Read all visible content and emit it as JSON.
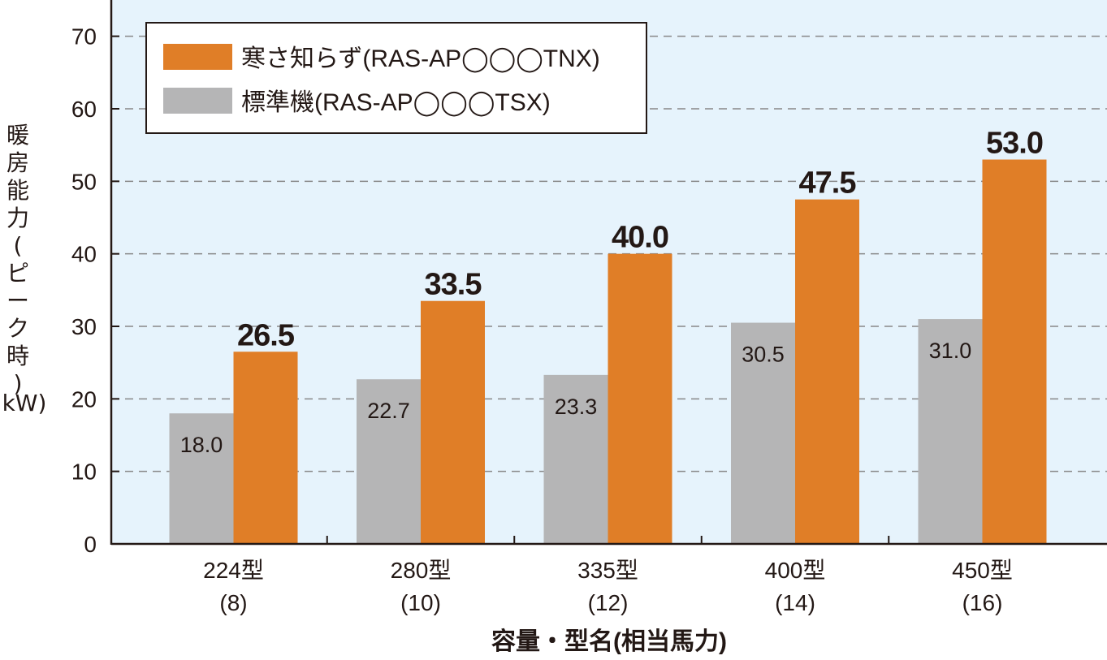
{
  "chart_data": {
    "type": "bar",
    "categories": [
      "224型",
      "280型",
      "335型",
      "400型",
      "450型"
    ],
    "category_sublabels": [
      "(8)",
      "(10)",
      "(12)",
      "(14)",
      "(16)"
    ],
    "series": [
      {
        "name": "標準機(RAS-AP◯◯◯TSX)",
        "values": [
          18.0,
          22.7,
          23.3,
          30.5,
          31.0
        ],
        "color": "#b5b5b6"
      },
      {
        "name": "寒さ知らず(RAS-AP◯◯◯TNX)",
        "values": [
          26.5,
          33.5,
          40.0,
          47.5,
          53.0
        ],
        "color": "#e07e27"
      }
    ],
    "data_labels": [
      [
        "18.0",
        "22.7",
        "23.3",
        "30.5",
        "31.0"
      ],
      [
        "26.5",
        "33.5",
        "40.0",
        "47.5",
        "53.0"
      ]
    ],
    "ylabel": "暖房能力(ピーク時)",
    "yunit": "kW)",
    "xlabel": "容量・型名(相当馬力)",
    "ylim": [
      0,
      75
    ],
    "yticks": [
      0,
      10,
      20,
      30,
      40,
      50,
      60,
      70
    ],
    "grid": "horizontal-dashed",
    "legend_position": "top-left",
    "colors": {
      "plot_background": "#e6f3fc",
      "grid": "#888888",
      "axis": "#231815"
    }
  }
}
